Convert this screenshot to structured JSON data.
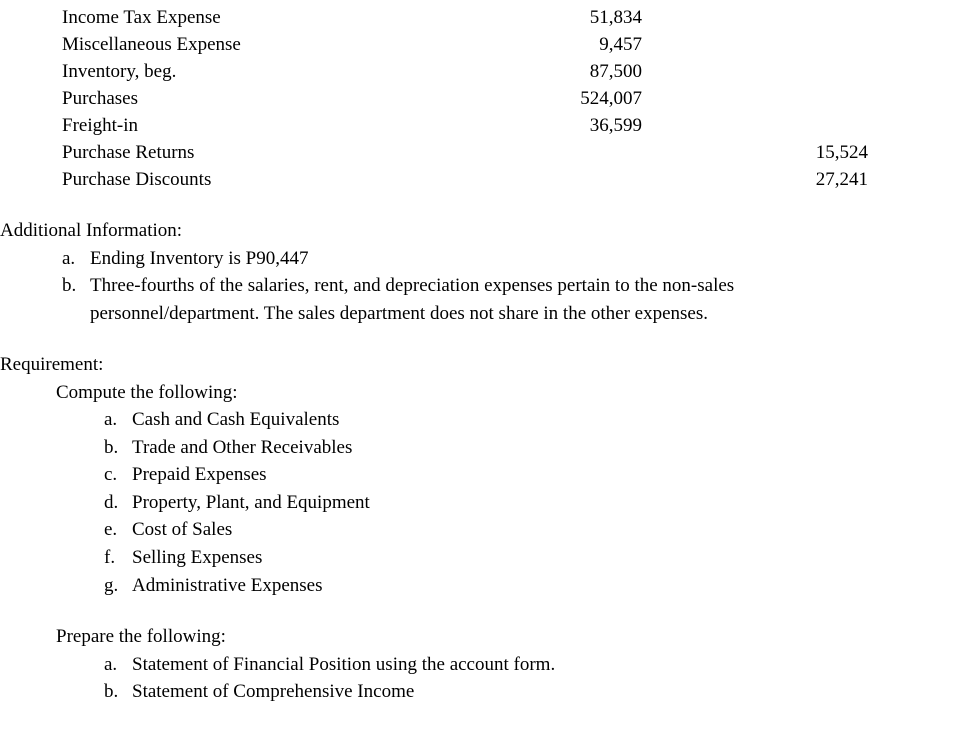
{
  "accounts": [
    {
      "label": "Income Tax Expense",
      "col1": "51,834",
      "col2": ""
    },
    {
      "label": "Miscellaneous Expense",
      "col1": "9,457",
      "col2": ""
    },
    {
      "label": "Inventory, beg.",
      "col1": "87,500",
      "col2": ""
    },
    {
      "label": "Purchases",
      "col1": "524,007",
      "col2": ""
    },
    {
      "label": "Freight-in",
      "col1": "36,599",
      "col2": ""
    },
    {
      "label": "Purchase Returns",
      "col1": "",
      "col2": "15,524"
    },
    {
      "label": "Purchase Discounts",
      "col1": "",
      "col2": "27,241"
    }
  ],
  "additionalInfo": {
    "heading": "Additional Information:",
    "items": [
      {
        "marker": "a.",
        "text": "Ending Inventory is P90,447"
      },
      {
        "marker": "b.",
        "text": "Three-fourths of the salaries, rent, and depreciation expenses pertain to the non-sales personnel/department. The sales department does not share in the other expenses."
      }
    ]
  },
  "requirement": {
    "heading": "Requirement:",
    "computeIntro": "Compute the following:",
    "computeItems": [
      {
        "marker": "a.",
        "text": "Cash and Cash Equivalents"
      },
      {
        "marker": "b.",
        "text": "Trade and Other Receivables"
      },
      {
        "marker": "c.",
        "text": "Prepaid Expenses"
      },
      {
        "marker": "d.",
        "text": "Property, Plant, and Equipment"
      },
      {
        "marker": "e.",
        "text": "Cost of Sales"
      },
      {
        "marker": "f.",
        "text": "Selling Expenses"
      },
      {
        "marker": "g.",
        "text": "Administrative Expenses"
      }
    ],
    "prepareIntro": "Prepare the following:",
    "prepareItems": [
      {
        "marker": "a.",
        "text": "Statement of Financial Position using the account form."
      },
      {
        "marker": "b.",
        "text": "Statement of Comprehensive Income"
      }
    ]
  }
}
